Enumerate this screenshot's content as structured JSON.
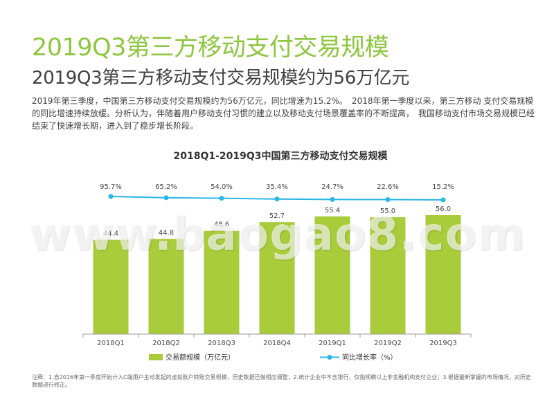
{
  "header": {
    "title": "2019Q3第三方移动支付交易规模",
    "subtitle": "2019Q3第三方移动支付交易规模约为56万亿元"
  },
  "body_text": "2019年第三季度，中国第三方移动支付交易规模约为56万亿元，同比增速为15.2%。　2018年第一季度以来，第三方移动 支付交易规模的同比增速持续放缓。分析认为，伴随着用户移动支付习惯的建立以及移动支付场景覆盖率的不断提高，　我国移动支付市场交易规模已经结束了快速增长期，进入到了稳步增长阶段。",
  "watermark": "www.baogao8.com",
  "footnote": "注释：1.自2016年第一季度开始计入C端用户主动发起的虚拟账户转账交易规模，历史数据已做相应调整；2.统计企业中不含银行，仅指规模以上非金融机构支付企业；3.根据最新掌握的市场情况，对历史数据进行修正。",
  "colors": {
    "bar": "#a9cc3a",
    "line": "#29b6e8",
    "title": "#8dc63f"
  },
  "chart_data": {
    "type": "bar",
    "title": "2018Q1-2019Q3中国第三方移动支付交易规模",
    "categories": [
      "2018Q1",
      "2018Q2",
      "2018Q3",
      "2018Q4",
      "2019Q1",
      "2019Q2",
      "2019Q3"
    ],
    "series": [
      {
        "name": "交易额规模（万亿元）",
        "type": "bar",
        "values": [
          44.4,
          44.8,
          48.6,
          52.7,
          55.4,
          55.0,
          56.0
        ],
        "labels": [
          "44.4",
          "44.8",
          "48.6",
          "52.7",
          "55.4",
          "55.0",
          "56.0"
        ]
      },
      {
        "name": "同比增长率（%）",
        "type": "line",
        "values": [
          95.7,
          65.2,
          54.0,
          35.4,
          24.7,
          22.6,
          15.2
        ],
        "labels": [
          "95.7%",
          "65.2%",
          "54.0%",
          "35.4%",
          "24.7%",
          "22.6%",
          "15.2%"
        ]
      }
    ],
    "legend_position": "bottom",
    "grid": false
  }
}
